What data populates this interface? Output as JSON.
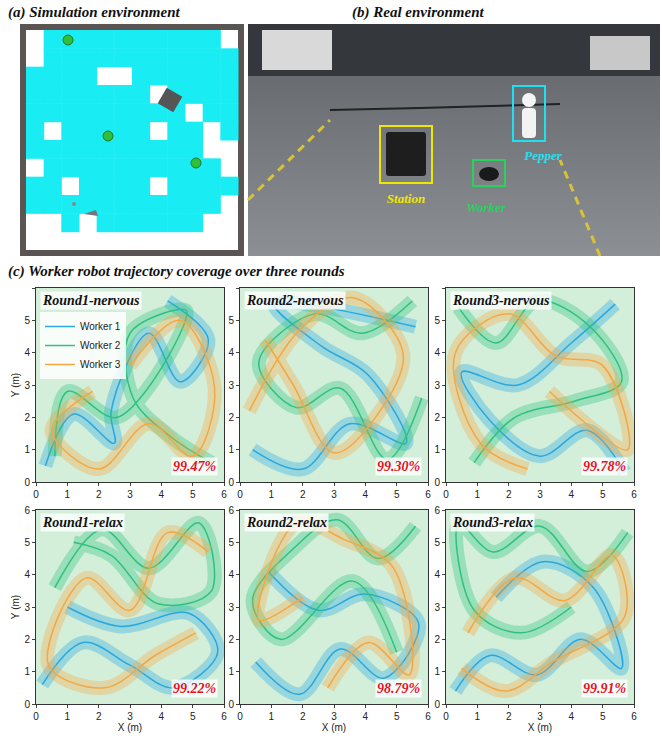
{
  "figure": {
    "panel_a": {
      "title": "(a) Simulation environment"
    },
    "panel_b": {
      "title": "(b) Real environment",
      "labels": {
        "station": "Station",
        "worker": "Worker",
        "pepper": "Pepper"
      }
    },
    "panel_c": {
      "title": "(c) Worker robot trajectory coverage over three rounds"
    }
  },
  "chart_data": [
    {
      "type": "line",
      "title": "Round1-nervous",
      "annotation": "99.47%",
      "y_label": "Y (m)",
      "legend": "upper left",
      "xlim": [
        0,
        6
      ],
      "ylim": [
        0,
        6
      ],
      "xticks": [
        0,
        1,
        2,
        3,
        4,
        5,
        6
      ],
      "yticks": [
        0,
        1,
        2,
        3,
        4,
        5,
        6
      ],
      "series": [
        {
          "name": "Worker 1",
          "color": "#29a8e0",
          "x": [
            0.3,
            1.2,
            2.5,
            2.4,
            3.6,
            4.6,
            5.5,
            4.2
          ],
          "y": [
            0.5,
            2.1,
            1.2,
            2.2,
            4.6,
            3.1,
            4.4,
            5.6
          ]
        },
        {
          "name": "Worker 2",
          "color": "#2ec27e",
          "x": [
            5.6,
            4.3,
            3.1,
            3.0,
            4.8,
            2.6,
            1.0,
            0.6
          ],
          "y": [
            0.6,
            1.4,
            2.6,
            4.6,
            5.3,
            2.0,
            2.8,
            0.8
          ]
        },
        {
          "name": "Worker 3",
          "color": "#f5a742",
          "x": [
            3.0,
            4.6,
            5.7,
            5.0,
            3.6,
            2.0,
            0.5,
            1.8
          ],
          "y": [
            3.6,
            5.0,
            2.9,
            0.8,
            1.8,
            0.4,
            1.6,
            2.8
          ]
        }
      ]
    },
    {
      "type": "line",
      "title": "Round2-nervous",
      "annotation": "99.30%",
      "xlim": [
        0,
        6
      ],
      "ylim": [
        0,
        6
      ],
      "xticks": [
        0,
        1,
        2,
        3,
        4,
        5,
        6
      ],
      "yticks": [
        0,
        1,
        2,
        3,
        4,
        5,
        6
      ],
      "series": [
        {
          "name": "Worker 1",
          "color": "#29a8e0",
          "x": [
            0.4,
            2.0,
            3.5,
            5.3,
            4.1,
            2.6,
            1.1,
            5.6
          ],
          "y": [
            1.0,
            0.4,
            1.8,
            1.2,
            3.3,
            4.2,
            5.5,
            4.8
          ]
        },
        {
          "name": "Worker 2",
          "color": "#2ec27e",
          "x": [
            5.5,
            3.9,
            2.4,
            0.6,
            1.8,
            3.2,
            4.7,
            5.8
          ],
          "y": [
            5.6,
            4.6,
            5.2,
            3.7,
            2.3,
            2.9,
            0.7,
            2.6
          ]
        },
        {
          "name": "Worker 3",
          "color": "#f5a742",
          "x": [
            0.8,
            1.7,
            3.0,
            4.4,
            5.2,
            3.6,
            1.9,
            0.3
          ],
          "y": [
            4.4,
            3.0,
            0.9,
            2.1,
            4.0,
            5.7,
            4.7,
            2.2
          ]
        }
      ]
    },
    {
      "type": "line",
      "title": "Round3-nervous",
      "annotation": "99.78%",
      "xlim": [
        0,
        6
      ],
      "ylim": [
        0,
        6
      ],
      "xticks": [
        0,
        1,
        2,
        3,
        4,
        5,
        6
      ],
      "yticks": [
        0,
        1,
        2,
        3,
        4,
        5,
        6
      ],
      "series": [
        {
          "name": "Worker 1",
          "color": "#29a8e0",
          "x": [
            5.7,
            4.5,
            3.0,
            1.4,
            0.5,
            2.3,
            4.0,
            5.4
          ],
          "y": [
            0.3,
            1.6,
            0.8,
            1.9,
            3.4,
            3.0,
            4.3,
            5.5
          ]
        },
        {
          "name": "Worker 2",
          "color": "#2ec27e",
          "x": [
            0.4,
            1.6,
            2.9,
            4.6,
            5.6,
            4.1,
            2.2,
            0.9
          ],
          "y": [
            5.4,
            4.3,
            5.6,
            4.8,
            3.1,
            2.5,
            2.0,
            0.6
          ]
        },
        {
          "name": "Worker 3",
          "color": "#f5a742",
          "x": [
            2.6,
            1.1,
            0.3,
            2.0,
            3.5,
            5.0,
            5.8,
            3.3
          ],
          "y": [
            0.4,
            1.2,
            4.0,
            5.2,
            3.9,
            3.6,
            1.0,
            2.8
          ]
        }
      ]
    },
    {
      "type": "line",
      "title": "Round1-relax",
      "annotation": "99.22%",
      "x_label": "X (m)",
      "y_label": "Y (m)",
      "xlim": [
        0,
        6
      ],
      "ylim": [
        0,
        6
      ],
      "xticks": [
        0,
        1,
        2,
        3,
        4,
        5,
        6
      ],
      "yticks": [
        0,
        1,
        2,
        3,
        4,
        5,
        6
      ],
      "series": [
        {
          "name": "Worker 1",
          "color": "#29a8e0",
          "x": [
            0.2,
            1.5,
            3.0,
            4.4,
            5.8,
            4.9,
            2.7,
            1.0
          ],
          "y": [
            0.6,
            1.9,
            1.2,
            0.5,
            1.6,
            2.8,
            2.4,
            3.0
          ]
        },
        {
          "name": "Worker 2",
          "color": "#2ec27e",
          "x": [
            0.6,
            2.1,
            3.6,
            5.2,
            5.6,
            3.9,
            2.4,
            1.2
          ],
          "y": [
            3.6,
            5.4,
            4.2,
            5.6,
            3.5,
            3.1,
            4.6,
            5.0
          ]
        },
        {
          "name": "Worker 3",
          "color": "#f5a742",
          "x": [
            5.5,
            4.2,
            3.0,
            1.6,
            0.4,
            2.2,
            3.8,
            5.1
          ],
          "y": [
            4.7,
            5.3,
            2.9,
            3.9,
            1.2,
            0.5,
            1.5,
            2.2
          ]
        }
      ]
    },
    {
      "type": "line",
      "title": "Round2-relax",
      "annotation": "98.79%",
      "x_label": "X (m)",
      "xlim": [
        0,
        6
      ],
      "ylim": [
        0,
        6
      ],
      "xticks": [
        0,
        1,
        2,
        3,
        4,
        5,
        6
      ],
      "yticks": [
        0,
        1,
        2,
        3,
        4,
        5,
        6
      ],
      "series": [
        {
          "name": "Worker 1",
          "color": "#29a8e0",
          "x": [
            0.5,
            1.9,
            3.2,
            4.6,
            5.7,
            4.0,
            2.5,
            0.9
          ],
          "y": [
            1.3,
            0.3,
            1.7,
            0.8,
            2.5,
            3.4,
            2.9,
            4.1
          ]
        },
        {
          "name": "Worker 2",
          "color": "#2ec27e",
          "x": [
            5.6,
            4.4,
            3.1,
            1.7,
            0.4,
            1.3,
            3.6,
            5.0
          ],
          "y": [
            5.5,
            4.5,
            5.7,
            4.8,
            3.2,
            2.0,
            3.8,
            1.6
          ]
        },
        {
          "name": "Worker 3",
          "color": "#f5a742",
          "x": [
            2.8,
            4.1,
            5.4,
            4.9,
            3.3,
            1.8,
            0.6,
            2.0
          ],
          "y": [
            0.5,
            1.9,
            0.9,
            4.2,
            5.1,
            5.6,
            2.6,
            3.3
          ]
        }
      ]
    },
    {
      "type": "line",
      "title": "Round3-relax",
      "annotation": "99.91%",
      "x_label": "X (m)",
      "xlim": [
        0,
        6
      ],
      "ylim": [
        0,
        6
      ],
      "xticks": [
        0,
        1,
        2,
        3,
        4,
        5,
        6
      ],
      "yticks": [
        0,
        1,
        2,
        3,
        4,
        5,
        6
      ],
      "series": [
        {
          "name": "Worker 1",
          "color": "#29a8e0",
          "x": [
            0.3,
            1.4,
            2.9,
            4.3,
            5.6,
            4.7,
            3.1,
            1.6
          ],
          "y": [
            0.4,
            1.5,
            0.9,
            2.0,
            1.1,
            3.6,
            4.4,
            3.3
          ]
        },
        {
          "name": "Worker 2",
          "color": "#2ec27e",
          "x": [
            5.8,
            4.5,
            3.0,
            1.5,
            0.4,
            0.9,
            2.4,
            4.0
          ],
          "y": [
            5.3,
            4.1,
            5.5,
            4.7,
            5.6,
            2.9,
            2.2,
            3.0
          ]
        },
        {
          "name": "Worker 3",
          "color": "#f5a742",
          "x": [
            0.7,
            2.2,
            3.8,
            5.3,
            5.7,
            3.4,
            1.9,
            0.5
          ],
          "y": [
            2.2,
            3.9,
            3.2,
            4.6,
            2.7,
            1.3,
            0.4,
            1.1
          ]
        }
      ]
    }
  ]
}
